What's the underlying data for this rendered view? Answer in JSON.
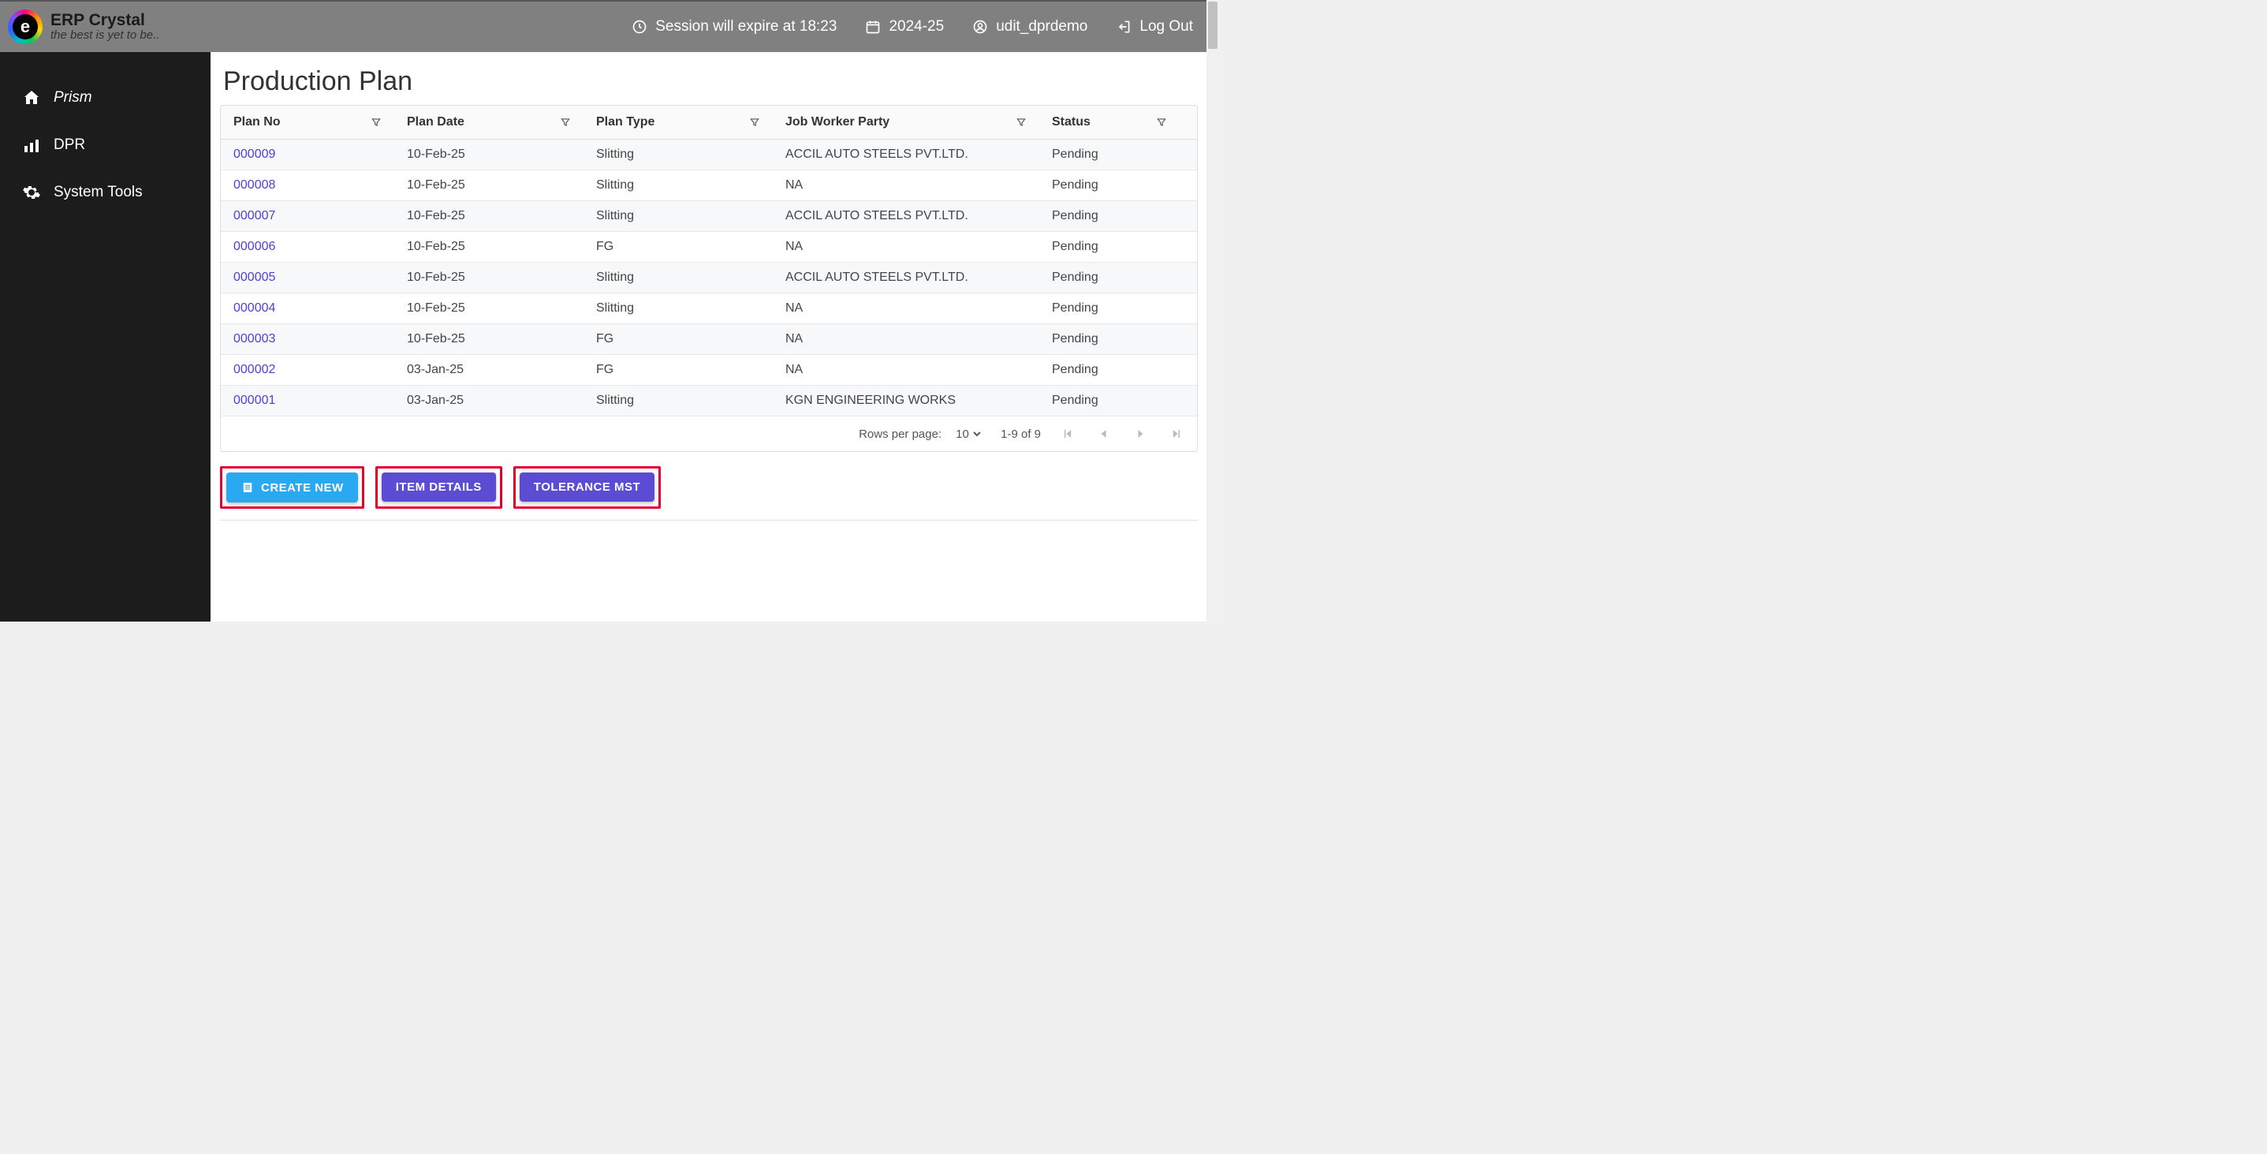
{
  "brand": {
    "title": "ERP Crystal",
    "tagline": "the best is yet to be.."
  },
  "topbar": {
    "session": "Session will expire at 18:23",
    "year": "2024-25",
    "user": "udit_dprdemo",
    "logout": "Log Out"
  },
  "sidebar": {
    "items": [
      {
        "label": "Prism"
      },
      {
        "label": "DPR"
      },
      {
        "label": "System Tools"
      }
    ]
  },
  "page": {
    "title": "Production Plan"
  },
  "table": {
    "columns": [
      "Plan No",
      "Plan Date",
      "Plan Type",
      "Job Worker Party",
      "Status"
    ],
    "rows": [
      {
        "plan": "000009",
        "date": "10-Feb-25",
        "type": "Slitting",
        "party": "ACCIL AUTO STEELS PVT.LTD.",
        "status": "Pending"
      },
      {
        "plan": "000008",
        "date": "10-Feb-25",
        "type": "Slitting",
        "party": "NA",
        "status": "Pending"
      },
      {
        "plan": "000007",
        "date": "10-Feb-25",
        "type": "Slitting",
        "party": "ACCIL AUTO STEELS PVT.LTD.",
        "status": "Pending"
      },
      {
        "plan": "000006",
        "date": "10-Feb-25",
        "type": "FG",
        "party": "NA",
        "status": "Pending"
      },
      {
        "plan": "000005",
        "date": "10-Feb-25",
        "type": "Slitting",
        "party": "ACCIL AUTO STEELS PVT.LTD.",
        "status": "Pending"
      },
      {
        "plan": "000004",
        "date": "10-Feb-25",
        "type": "Slitting",
        "party": "NA",
        "status": "Pending"
      },
      {
        "plan": "000003",
        "date": "10-Feb-25",
        "type": "FG",
        "party": "NA",
        "status": "Pending"
      },
      {
        "plan": "000002",
        "date": "03-Jan-25",
        "type": "FG",
        "party": "NA",
        "status": "Pending"
      },
      {
        "plan": "000001",
        "date": "03-Jan-25",
        "type": "Slitting",
        "party": "KGN ENGINEERING WORKS",
        "status": "Pending"
      }
    ]
  },
  "pager": {
    "rpp_label": "Rows per page:",
    "rpp_value": "10",
    "range": "1-9 of 9"
  },
  "actions": {
    "create": "CREATE NEW",
    "item_details": "ITEM DETAILS",
    "tolerance": "TOLERANCE MST"
  },
  "colors": {
    "topbar": "#808080",
    "sidebar": "#1c1c1c",
    "link": "#4f3fd9",
    "btn_primary": "#29a9f2",
    "btn_secondary": "#5c4bd3",
    "highlight_border": "#e4002b"
  }
}
